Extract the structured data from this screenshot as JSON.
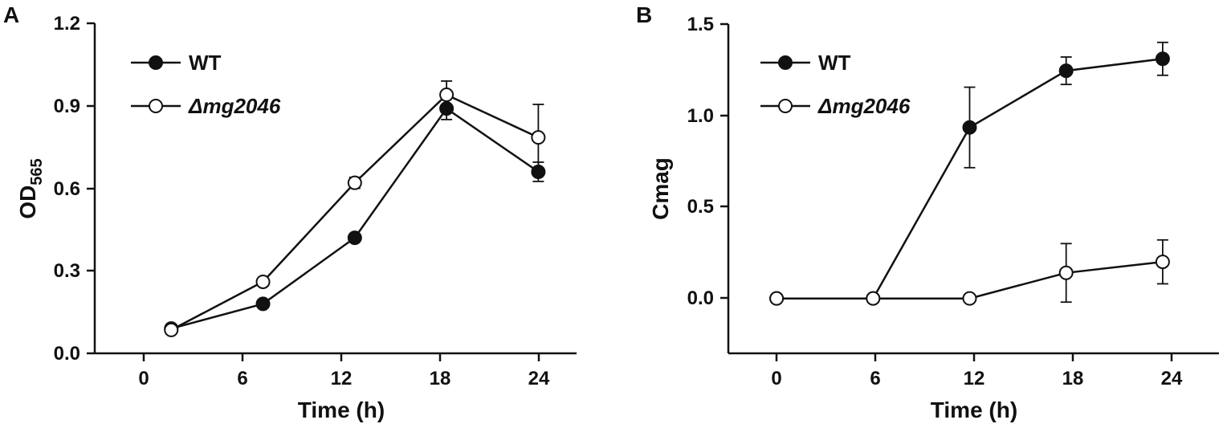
{
  "panels": [
    {
      "letter": "A",
      "ylabel_main": "OD",
      "ylabel_sub": "565",
      "xlabel": "Time (h)",
      "y_ticks": [
        "0.0",
        "0.3",
        "0.6",
        "0.9",
        "1.2"
      ],
      "x_ticks": [
        "0",
        "6",
        "12",
        "18",
        "24"
      ],
      "legend": [
        {
          "label": "WT",
          "italic": false
        },
        {
          "label": "Δmg2046",
          "italic": true
        }
      ]
    },
    {
      "letter": "B",
      "ylabel_main": "Cmag",
      "ylabel_sub": "",
      "xlabel": "Time (h)",
      "y_ticks": [
        "0.0",
        "0.5",
        "1.0",
        "1.5"
      ],
      "x_ticks": [
        "0",
        "6",
        "12",
        "18",
        "24"
      ],
      "legend": [
        {
          "label": "WT",
          "italic": false
        },
        {
          "label": "Δmg2046",
          "italic": true
        }
      ]
    }
  ],
  "chart_data": [
    {
      "type": "line",
      "panel": "A",
      "title": "",
      "xlabel": "Time (h)",
      "ylabel": "OD565",
      "x": [
        0,
        6,
        12,
        18,
        24
      ],
      "xlim": [
        -5,
        26.5
      ],
      "ylim": [
        0,
        1.2
      ],
      "series": [
        {
          "name": "WT",
          "marker": "filled-circle",
          "values": [
            0.09,
            0.18,
            0.42,
            0.89,
            0.66
          ],
          "errors": [
            0,
            0,
            0,
            0.04,
            0.035
          ]
        },
        {
          "name": "Δmg2046",
          "marker": "open-circle",
          "values": [
            0.085,
            0.26,
            0.62,
            0.94,
            0.785
          ],
          "errors": [
            0,
            0,
            0.02,
            0.05,
            0.12
          ]
        }
      ],
      "legend_position": "top-left",
      "grid": false
    },
    {
      "type": "line",
      "panel": "B",
      "title": "",
      "xlabel": "Time (h)",
      "ylabel": "Cmag",
      "x": [
        0,
        6,
        12,
        18,
        24
      ],
      "xlim": [
        -3,
        27.5
      ],
      "ylim": [
        -0.3,
        1.5
      ],
      "series": [
        {
          "name": "WT",
          "marker": "filled-circle",
          "values": [
            0.0,
            0.0,
            0.935,
            1.245,
            1.31
          ],
          "errors": [
            0,
            0,
            0.22,
            0.075,
            0.09
          ]
        },
        {
          "name": "Δmg2046",
          "marker": "open-circle",
          "values": [
            0.0,
            0.0,
            0.0,
            0.14,
            0.2
          ],
          "errors": [
            0,
            0,
            0,
            0.16,
            0.12
          ]
        }
      ],
      "legend_position": "top-left",
      "grid": false
    }
  ]
}
